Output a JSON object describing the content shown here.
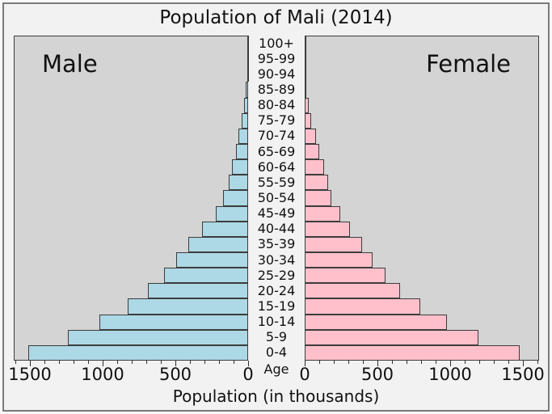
{
  "chart": {
    "title": "Population of Mali (2014)",
    "left_label": "Male",
    "right_label": "Female",
    "age_axis_label": "Age",
    "x_axis_label": "Population (in thousands)",
    "x_ticks": [
      0,
      500,
      1000,
      1500
    ],
    "x_minor_step": 100,
    "x_max": 1600,
    "colors": {
      "male_fill": "#add8e6",
      "female_fill": "#ffc0cb",
      "bar_edge": "#3c3c3c",
      "panel_bg": "#d4d4d4",
      "panel_border": "#3d3d3d",
      "figure_bg": "#f2f2f2",
      "figure_border": "#7a7a7a",
      "text": "#111111"
    }
  },
  "chart_data": {
    "type": "bar",
    "subtype": "population-pyramid",
    "title": "Population of Mali (2014)",
    "xlabel": "Population (in thousands)",
    "ylabel": "Age",
    "unit": "thousands of people",
    "xlim": [
      0,
      1600
    ],
    "grid": false,
    "legend_position": "panel-top-corners",
    "categories": [
      "0-4",
      "5-9",
      "10-14",
      "15-19",
      "20-24",
      "25-29",
      "30-34",
      "35-39",
      "40-44",
      "45-49",
      "50-54",
      "55-59",
      "60-64",
      "65-69",
      "70-74",
      "75-79",
      "80-84",
      "85-89",
      "90-94",
      "95-99",
      "100+"
    ],
    "series": [
      {
        "name": "Male",
        "direction": "left",
        "values": [
          1510,
          1240,
          1020,
          830,
          690,
          580,
          495,
          410,
          315,
          225,
          170,
          135,
          110,
          85,
          65,
          45,
          27,
          15,
          8,
          4,
          2
        ]
      },
      {
        "name": "Female",
        "direction": "right",
        "values": [
          1480,
          1195,
          980,
          795,
          655,
          555,
          465,
          395,
          313,
          245,
          185,
          160,
          132,
          100,
          78,
          45,
          25,
          12,
          5,
          2,
          1
        ]
      }
    ]
  }
}
